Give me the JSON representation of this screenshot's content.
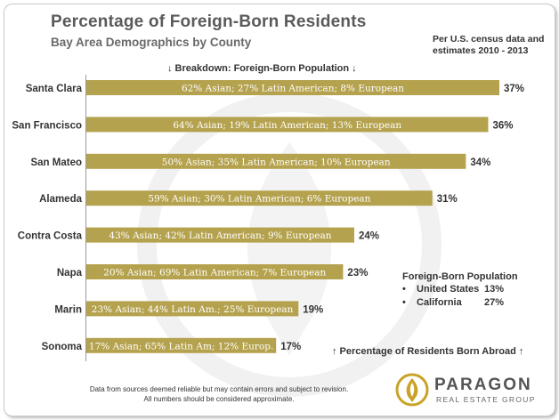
{
  "chart_data": {
    "type": "bar",
    "orientation": "horizontal",
    "title": "Percentage of Foreign-Born Residents",
    "subtitle": "Bay Area Demographics by County",
    "source_note": [
      "Per U.S. census data and",
      "estimates 2010 - 2013"
    ],
    "breakdown_label": "↓ Breakdown: Foreign-Born Population ↓",
    "categories": [
      "Santa Clara",
      "San Francisco",
      "San Mateo",
      "Alameda",
      "Contra Costa",
      "Napa",
      "Marin",
      "Sonoma"
    ],
    "values": [
      37,
      36,
      34,
      31,
      24,
      23,
      19,
      17
    ],
    "value_labels": [
      "37%",
      "36%",
      "34%",
      "31%",
      "24%",
      "23%",
      "19%",
      "17%"
    ],
    "bar_texts": [
      "62% Asian; 27% Latin American; 8% European",
      "64% Asian; 19% Latin American; 13% European",
      "50% Asian; 35% Latin American; 10% European",
      "59% Asian; 30% Latin American; 6% European",
      "43% Asian; 42% Latin American; 9% European",
      "20% Asian; 69% Latin American; 7% European",
      "23% Asian; 44% Latin Am.; 25% European",
      "17% Asian; 65% Latin Am; 12% Europ."
    ],
    "xlim": [
      0,
      37
    ],
    "bar_color": "#b5a24e",
    "grid": false,
    "legend": "none"
  },
  "foreign_born_box": {
    "title": "Foreign-Born Population",
    "rows": [
      {
        "bullet": "•",
        "label": "United States",
        "value": "13%"
      },
      {
        "bullet": "•",
        "label": "California",
        "value": "27%"
      }
    ]
  },
  "percentage_note": "↑ Percentage of Residents Born Abroad ↑",
  "disclaimer": [
    "Data from sources deemed reliable but may contain errors and subject to revision.",
    "All numbers should be considered approximate."
  ],
  "logo": {
    "name": "PARAGON",
    "tagline": "REAL ESTATE GROUP",
    "accent": "#c9a227"
  }
}
